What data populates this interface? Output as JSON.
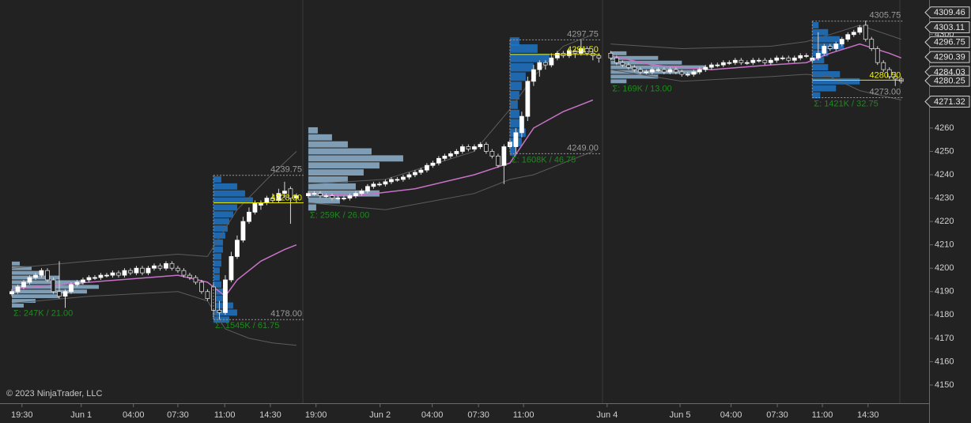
{
  "chart_data": {
    "type": "candlestick",
    "copyright": "© 2023 NinjaTrader, LLC",
    "xlim": [
      0,
      156.7
    ],
    "ylim": [
      4142.2,
      4314.8
    ],
    "xticks": [
      {
        "value": 3.7,
        "label": "19:30"
      },
      {
        "value": 13.7,
        "label": "Jun 1"
      },
      {
        "value": 22.5,
        "label": "04:00"
      },
      {
        "value": 30.0,
        "label": "07:30"
      },
      {
        "value": 37.9,
        "label": "11:00"
      },
      {
        "value": 45.6,
        "label": "14:30"
      },
      {
        "value": 53.3,
        "label": "19:00"
      },
      {
        "value": 64.1,
        "label": "Jun 2"
      },
      {
        "value": 72.9,
        "label": "04:00"
      },
      {
        "value": 80.7,
        "label": "07:30"
      },
      {
        "value": 88.3,
        "label": "11:00"
      },
      {
        "value": 102.4,
        "label": "Jun 4"
      },
      {
        "value": 114.7,
        "label": "Jun 5"
      },
      {
        "value": 123.3,
        "label": "04:00"
      },
      {
        "value": 131.1,
        "label": "07:30"
      },
      {
        "value": 138.7,
        "label": "11:00"
      },
      {
        "value": 146.4,
        "label": "14:30"
      }
    ],
    "yticks": [
      4150,
      4160,
      4170,
      4180,
      4190,
      4200,
      4210,
      4220,
      4230,
      4240,
      4250,
      4260,
      4270,
      4280,
      4290,
      4300
    ],
    "candles": {
      "x": [
        2,
        3,
        4,
        5,
        6,
        7,
        8,
        9,
        10,
        11,
        12,
        13,
        14,
        15,
        16,
        17,
        18,
        19,
        20,
        21,
        22,
        23,
        24,
        25,
        26,
        27,
        28,
        29,
        30,
        31,
        32,
        33,
        34,
        35,
        36,
        37,
        38,
        39,
        40,
        41,
        42,
        43,
        44,
        45,
        46,
        47,
        48,
        49,
        50,
        52,
        53,
        54,
        55,
        56,
        57,
        58,
        59,
        60,
        61,
        62,
        63,
        64,
        65,
        66,
        67,
        68,
        69,
        70,
        71,
        72,
        73,
        74,
        75,
        76,
        77,
        78,
        79,
        80,
        81,
        82,
        83,
        84,
        85,
        86,
        87,
        88,
        89,
        90,
        91,
        92,
        93,
        94,
        95,
        96,
        97,
        98,
        99,
        100,
        101,
        103,
        104,
        105,
        106,
        107,
        108,
        109,
        110,
        111,
        112,
        113,
        114,
        115,
        116,
        117,
        118,
        119,
        120,
        121,
        122,
        123,
        124,
        125,
        126,
        127,
        128,
        129,
        130,
        131,
        132,
        133,
        134,
        135,
        136,
        137,
        138,
        139,
        140,
        141,
        142,
        143,
        144,
        145,
        146,
        147,
        148,
        149,
        150,
        151,
        152
      ],
      "open": [
        4189,
        4190,
        4192,
        4194,
        4196,
        4197,
        4199,
        4195,
        4190,
        4188,
        4190,
        4193,
        4194,
        4195,
        4196,
        4196,
        4197,
        4197,
        4198,
        4197,
        4199,
        4198,
        4200,
        4198,
        4200,
        4201,
        4200,
        4202,
        4200,
        4199,
        4197,
        4196,
        4194,
        4190,
        4192,
        4182,
        4181,
        4195,
        4205,
        4212,
        4220,
        4224,
        4227,
        4228,
        4230,
        4229,
        4232,
        4234,
        4230,
        4231,
        4232,
        4232,
        4231,
        4231,
        4230,
        4230,
        4230,
        4231,
        4232,
        4233,
        4235,
        4236,
        4236,
        4237,
        4238,
        4238,
        4239,
        4240,
        4241,
        4242,
        4244,
        4245,
        4247,
        4248,
        4249,
        4250,
        4252,
        4251,
        4252,
        4253,
        4250,
        4248,
        4244,
        4252,
        4252,
        4258,
        4265,
        4280,
        4285,
        4288,
        4287,
        4290,
        4292,
        4291,
        4293,
        4292,
        4294,
        4292,
        4291,
        4292,
        4290,
        4288,
        4287,
        4286,
        4285,
        4284,
        4284,
        4285,
        4285,
        4284,
        4285,
        4284,
        4283,
        4283,
        4284,
        4285,
        4286,
        4287,
        4287,
        4288,
        4288,
        4289,
        4288,
        4288,
        4289,
        4289,
        4288,
        4289,
        4290,
        4290,
        4289,
        4290,
        4291,
        4289,
        4290,
        4292,
        4295,
        4294,
        4296,
        4298,
        4300,
        4301,
        4304,
        4298,
        4294,
        4288,
        4285,
        4282,
        4281
      ],
      "high": [
        4191,
        4193,
        4195,
        4197,
        4198,
        4200,
        4200,
        4196,
        4203,
        4191,
        4194,
        4195,
        4196,
        4197,
        4197,
        4198,
        4198,
        4199,
        4199,
        4200,
        4200,
        4201,
        4201,
        4201,
        4202,
        4202,
        4203,
        4203,
        4201,
        4200,
        4198,
        4197,
        4195,
        4191,
        4194,
        4186,
        4197,
        4207,
        4214,
        4222,
        4226,
        4229,
        4229,
        4231,
        4232,
        4234,
        4237,
        4235,
        4232,
        4233,
        4233,
        4233,
        4232,
        4232,
        4231,
        4231,
        4232,
        4233,
        4234,
        4236,
        4237,
        4237,
        4238,
        4239,
        4239,
        4240,
        4241,
        4242,
        4243,
        4245,
        4246,
        4248,
        4249,
        4250,
        4251,
        4253,
        4253,
        4253,
        4254,
        4254,
        4251,
        4249,
        4253,
        4255,
        4260,
        4267,
        4282,
        4287,
        4289,
        4289,
        4292,
        4293,
        4293,
        4294,
        4294,
        4298,
        4295,
        4293,
        4292,
        4293,
        4291,
        4289,
        4288,
        4287,
        4286,
        4285,
        4286,
        4286,
        4286,
        4286,
        4286,
        4285,
        4284,
        4285,
        4286,
        4287,
        4288,
        4288,
        4289,
        4289,
        4290,
        4290,
        4289,
        4290,
        4290,
        4290,
        4290,
        4291,
        4291,
        4291,
        4291,
        4292,
        4292,
        4291,
        4301,
        4296,
        4296,
        4297,
        4299,
        4301,
        4302,
        4304,
        4306,
        4299,
        4295,
        4289,
        4286,
        4284,
        4282
      ],
      "low": [
        4188,
        4189,
        4191,
        4193,
        4195,
        4196,
        4194,
        4189,
        4187,
        4183,
        4189,
        4192,
        4193,
        4194,
        4195,
        4195,
        4196,
        4196,
        4196,
        4196,
        4197,
        4197,
        4197,
        4197,
        4199,
        4199,
        4199,
        4199,
        4198,
        4196,
        4195,
        4193,
        4189,
        4186,
        4179,
        4178,
        4180,
        4194,
        4204,
        4211,
        4219,
        4223,
        4225,
        4227,
        4228,
        4228,
        4230,
        4219,
        4228,
        4230,
        4231,
        4230,
        4230,
        4229,
        4229,
        4229,
        4229,
        4230,
        4231,
        4232,
        4234,
        4235,
        4235,
        4236,
        4237,
        4237,
        4238,
        4239,
        4240,
        4241,
        4243,
        4244,
        4246,
        4247,
        4248,
        4249,
        4250,
        4250,
        4251,
        4249,
        4247,
        4243,
        4236,
        4251,
        4249,
        4256,
        4263,
        4278,
        4282,
        4285,
        4286,
        4289,
        4290,
        4290,
        4290,
        4291,
        4291,
        4289,
        4288,
        4289,
        4287,
        4286,
        4285,
        4284,
        4283,
        4283,
        4283,
        4284,
        4283,
        4283,
        4283,
        4282,
        4282,
        4282,
        4283,
        4284,
        4285,
        4286,
        4286,
        4287,
        4287,
        4287,
        4287,
        4287,
        4288,
        4287,
        4287,
        4288,
        4289,
        4288,
        4288,
        4289,
        4290,
        4288,
        4289,
        4291,
        4293,
        4293,
        4295,
        4297,
        4299,
        4300,
        4297,
        4293,
        4287,
        4284,
        4281,
        4278,
        4279
      ],
      "close": [
        4190,
        4192,
        4194,
        4196,
        4197,
        4199,
        4195,
        4190,
        4188,
        4190,
        4193,
        4194,
        4195,
        4196,
        4196,
        4197,
        4197,
        4198,
        4197,
        4199,
        4198,
        4200,
        4198,
        4200,
        4201,
        4200,
        4202,
        4200,
        4199,
        4197,
        4196,
        4194,
        4190,
        4187,
        4182,
        4181,
        4195,
        4205,
        4212,
        4220,
        4224,
        4228,
        4228,
        4230,
        4229,
        4232,
        4233,
        4230,
        4231,
        4232,
        4232,
        4231,
        4231,
        4230,
        4230,
        4230,
        4231,
        4232,
        4233,
        4235,
        4236,
        4236,
        4237,
        4238,
        4238,
        4239,
        4240,
        4241,
        4242,
        4244,
        4245,
        4247,
        4248,
        4249,
        4250,
        4252,
        4251,
        4252,
        4253,
        4250,
        4248,
        4244,
        4252,
        4254,
        4258,
        4265,
        4280,
        4285,
        4288,
        4287,
        4290,
        4292,
        4291,
        4293,
        4292,
        4294,
        4292,
        4291,
        4290,
        4290,
        4288,
        4287,
        4286,
        4285,
        4284,
        4284,
        4285,
        4285,
        4284,
        4285,
        4284,
        4283,
        4283,
        4284,
        4285,
        4286,
        4287,
        4287,
        4288,
        4288,
        4289,
        4288,
        4288,
        4289,
        4289,
        4288,
        4289,
        4290,
        4290,
        4289,
        4290,
        4291,
        4291,
        4290,
        4292,
        4295,
        4294,
        4296,
        4298,
        4300,
        4301,
        4303,
        4298,
        4294,
        4288,
        4285,
        4282,
        4281,
        4280
      ]
    },
    "vwap": {
      "color": "#c772c7",
      "x": [
        2,
        10,
        20,
        30,
        35,
        38,
        40,
        44,
        48,
        50,
        51,
        52,
        60,
        70,
        80,
        86,
        90,
        95,
        100,
        102,
        103,
        110,
        120,
        130,
        136,
        140,
        145,
        150,
        152
      ],
      "values": [
        4191,
        4193,
        4195,
        4197,
        4194,
        4188,
        4195,
        4203,
        4208,
        4210,
        null,
        4232,
        4231,
        4234,
        4240,
        4245,
        4260,
        4267,
        4272,
        null,
        4291,
        4287,
        4285,
        4287,
        4288,
        4292,
        4296,
        4292,
        4290
      ]
    },
    "bands": [
      {
        "color": "#5c5c5c",
        "x": [
          2,
          15,
          30,
          35,
          40,
          45,
          50,
          51,
          52,
          65,
          80,
          86,
          90,
          95,
          100,
          102,
          103,
          115,
          130,
          136,
          140,
          145,
          152
        ],
        "values": [
          4200,
          4203,
          4206,
          4205,
          4225,
          4238,
          4250,
          null,
          4236,
          4238,
          4250,
          4268,
          4282,
          4295,
          4300,
          null,
          4296,
          4294,
          4295,
          4297,
          4300,
          4304,
          4298
        ]
      },
      {
        "color": "#5c5c5c",
        "x": [
          2,
          15,
          30,
          35,
          38,
          42,
          46,
          50,
          51,
          52,
          65,
          80,
          86,
          90,
          95,
          100,
          102,
          103,
          115,
          130,
          136,
          140,
          145,
          152
        ],
        "values": [
          4185,
          4188,
          4190,
          4186,
          4174,
          4170,
          4168,
          4167,
          null,
          4228,
          4225,
          4232,
          4238,
          4240,
          4245,
          4250,
          null,
          4285,
          4280,
          4282,
          4283,
          4282,
          4276,
          4272
        ]
      }
    ],
    "profiles": [
      {
        "x": 2,
        "color": "#8fb3cf",
        "prices": [
          4184,
          4186,
          4188,
          4190,
          4192,
          4194,
          4196,
          4198,
          4200,
          4202
        ],
        "volumes": [
          15,
          30,
          60,
          95,
          110,
          90,
          60,
          40,
          25,
          10
        ],
        "summary": "Σ: 247K / 21.00"
      },
      {
        "x": 36,
        "color": "#1f74c6",
        "prices": [
          4178,
          4181,
          4184,
          4187,
          4190,
          4193,
          4196,
          4199,
          4202,
          4205,
          4208,
          4211,
          4214,
          4217,
          4220,
          4223,
          4226,
          4229,
          4232,
          4235,
          4238
        ],
        "volumes": [
          20,
          30,
          25,
          15,
          12,
          10,
          8,
          8,
          10,
          10,
          12,
          12,
          15,
          18,
          20,
          25,
          30,
          50,
          40,
          30,
          10
        ],
        "summary": "Σ: 1545K / 61.75",
        "high": {
          "value": 4239.75,
          "label": "4239.75"
        },
        "low": {
          "value": 4178,
          "label": "4178.00"
        },
        "poc": {
          "value": 4228,
          "label": "4228.00"
        }
      },
      {
        "x": 52,
        "color": "#8fb3cf",
        "prices": [
          4226,
          4229,
          4232,
          4235,
          4238,
          4241,
          4244,
          4247,
          4250,
          4253,
          4256,
          4259
        ],
        "volumes": [
          10,
          40,
          90,
          60,
          50,
          70,
          90,
          120,
          80,
          50,
          30,
          12
        ],
        "summary": "Σ: 259K / 26.00"
      },
      {
        "x": 86,
        "color": "#1f74c6",
        "prices": [
          4250,
          4254,
          4258,
          4262,
          4266,
          4270,
          4274,
          4278,
          4282,
          4286,
          4290,
          4294,
          4297
        ],
        "volumes": [
          8,
          15,
          20,
          18,
          12,
          10,
          12,
          15,
          20,
          30,
          50,
          35,
          12
        ],
        "summary": "Σ: 1608K / 46.75",
        "high": {
          "value": 4297.75,
          "label": "4297.75"
        },
        "low": {
          "value": 4249,
          "label": "4249.00"
        },
        "poc": {
          "value": 4291.5,
          "label": "4291.50"
        }
      },
      {
        "x": 103,
        "color": "#8fb3cf",
        "prices": [
          4280,
          4282,
          4284,
          4286,
          4288,
          4290,
          4292
        ],
        "volumes": [
          20,
          60,
          110,
          120,
          90,
          60,
          20
        ],
        "summary": "Σ: 169K / 13.00"
      },
      {
        "x": 137,
        "color": "#1f74c6",
        "prices": [
          4274,
          4277,
          4280,
          4283,
          4286,
          4289,
          4292,
          4295,
          4298,
          4301,
          4304
        ],
        "volumes": [
          10,
          30,
          60,
          35,
          20,
          15,
          20,
          40,
          35,
          20,
          8
        ],
        "summary": "Σ: 1421K / 32.75",
        "high": {
          "value": 4305.75,
          "label": "4305.75"
        },
        "low": {
          "value": 4273,
          "label": "4273.00"
        },
        "poc": {
          "value": 4280.5,
          "label": "4280.50"
        }
      }
    ],
    "price_markers": [
      4309.46,
      4303.11,
      4296.75,
      4290.39,
      4284.03,
      4280.25,
      4271.32
    ]
  }
}
